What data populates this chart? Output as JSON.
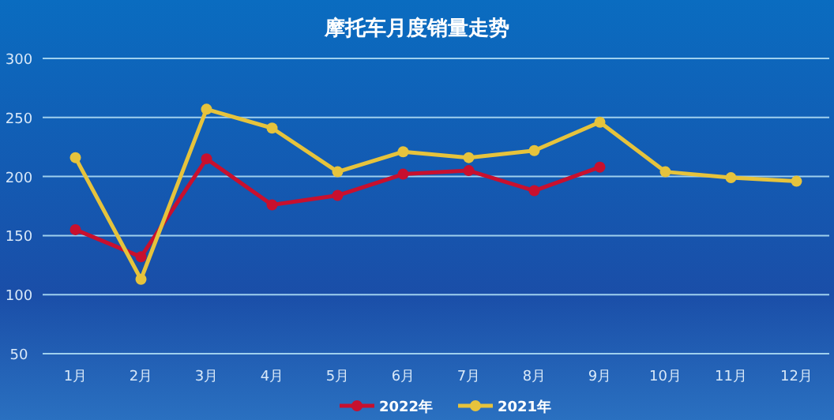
{
  "chart_data": {
    "type": "line",
    "title": "摩托车月度销量走势",
    "categories": [
      "1月",
      "2月",
      "3月",
      "4月",
      "5月",
      "6月",
      "7月",
      "8月",
      "9月",
      "10月",
      "11月",
      "12月"
    ],
    "series": [
      {
        "name": "2022年",
        "color": "#c8102e",
        "values": [
          155,
          132,
          215,
          176,
          184,
          202,
          205,
          188,
          208,
          null,
          null,
          null
        ]
      },
      {
        "name": "2021年",
        "color": "#e6c33c",
        "values": [
          216,
          113,
          257,
          241,
          204,
          221,
          216,
          222,
          246,
          204,
          199,
          196
        ]
      }
    ],
    "ylim": [
      50,
      300
    ],
    "yticks": [
      50,
      100,
      150,
      200,
      250,
      300
    ],
    "grid": "y",
    "legend": "bottom",
    "marker": "circle",
    "line_style": "solid"
  }
}
